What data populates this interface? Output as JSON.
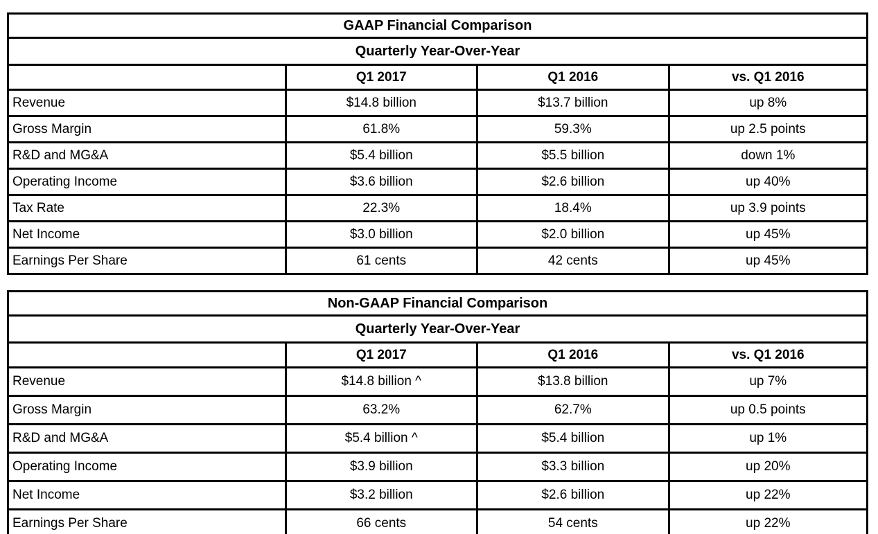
{
  "page": {
    "background": "#ffffff",
    "border_color": "#000000",
    "text_color": "#000000"
  },
  "gaap_table": {
    "title": "GAAP Financial Comparison",
    "subtitle": "Quarterly Year-Over-Year",
    "columns": {
      "metric": "",
      "q1_2017": "Q1 2017",
      "q1_2016": "Q1 2016",
      "vs": "vs. Q1 2016"
    },
    "rows": [
      {
        "label": "Revenue",
        "q1_2017": "$14.8 billion",
        "q1_2016": "$13.7 billion",
        "vs": "up 8%"
      },
      {
        "label": "Gross Margin",
        "q1_2017": "61.8%",
        "q1_2016": "59.3%",
        "vs": "up 2.5 points"
      },
      {
        "label": "R&D and MG&A",
        "q1_2017": "$5.4 billion",
        "q1_2016": "$5.5 billion",
        "vs": "down 1%"
      },
      {
        "label": "Operating Income",
        "q1_2017": "$3.6 billion",
        "q1_2016": "$2.6 billion",
        "vs": "up 40%"
      },
      {
        "label": "Tax Rate",
        "q1_2017": "22.3%",
        "q1_2016": "18.4%",
        "vs": "up 3.9 points"
      },
      {
        "label": "Net Income",
        "q1_2017": "$3.0 billion",
        "q1_2016": "$2.0 billion",
        "vs": "up 45%"
      },
      {
        "label": "Earnings Per Share",
        "q1_2017": "61 cents",
        "q1_2016": "42 cents",
        "vs": "up 45%"
      }
    ]
  },
  "non_gaap_table": {
    "title": "Non-GAAP Financial Comparison",
    "subtitle": "Quarterly Year-Over-Year",
    "columns": {
      "metric": "",
      "q1_2017": "Q1 2017",
      "q1_2016": "Q1 2016",
      "vs": "vs. Q1 2016"
    },
    "rows": [
      {
        "label": "Revenue",
        "q1_2017": "$14.8 billion ^",
        "q1_2016": "$13.8 billion",
        "vs": "up 7%"
      },
      {
        "label": "Gross Margin",
        "q1_2017": "63.2%",
        "q1_2016": "62.7%",
        "vs": "up 0.5 points"
      },
      {
        "label": "R&D and MG&A",
        "q1_2017": "$5.4 billion ^",
        "q1_2016": "$5.4 billion",
        "vs": "up 1%"
      },
      {
        "label": "Operating Income",
        "q1_2017": "$3.9 billion",
        "q1_2016": "$3.3 billion",
        "vs": "up 20%"
      },
      {
        "label": "Net Income",
        "q1_2017": "$3.2 billion",
        "q1_2016": "$2.6 billion",
        "vs": "up 22%"
      },
      {
        "label": "Earnings Per Share",
        "q1_2017": "66 cents",
        "q1_2016": "54 cents",
        "vs": "up 22%"
      }
    ]
  }
}
